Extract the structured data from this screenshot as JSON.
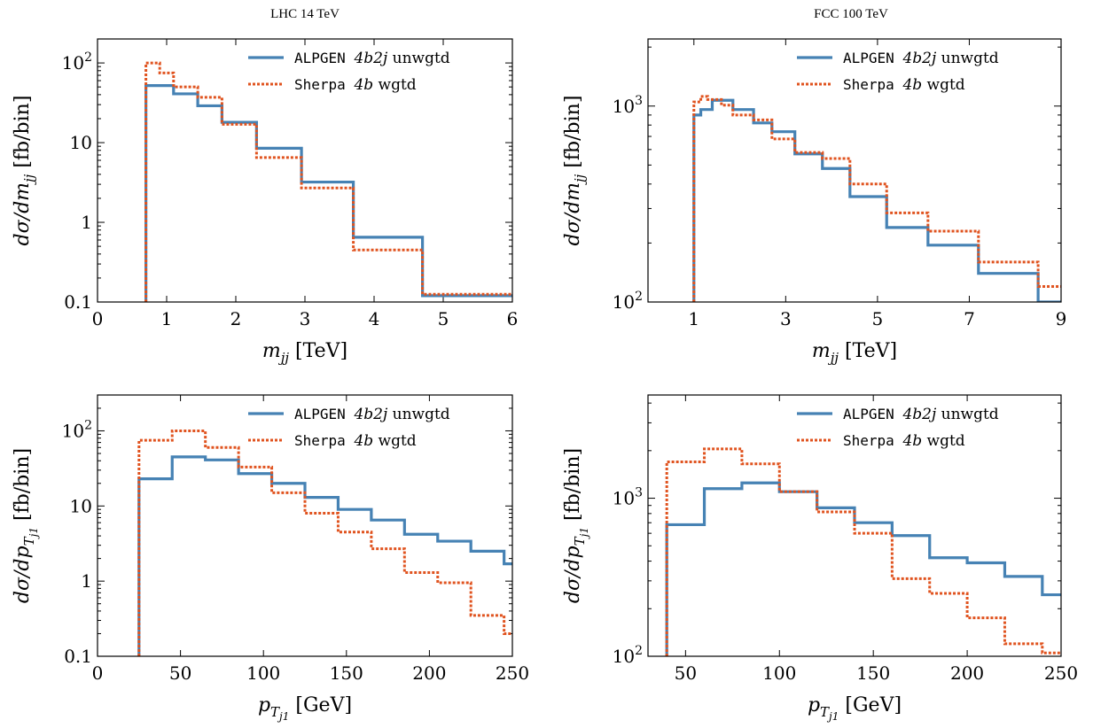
{
  "titles": {
    "left": "LHC 14 TeV",
    "right": "FCC 100 TeV"
  },
  "legend": [
    {
      "name": "ALPGEN 4b2j unwgtd",
      "prog": "ALPGEN",
      "proc": "4b2j",
      "tag": "unwgtd",
      "color": "#4682b4",
      "style": "solid"
    },
    {
      "name": "Sherpa 4b wgtd",
      "prog": "Sherpa",
      "proc": "4b",
      "tag": "wgtd",
      "color": "#e0531f",
      "style": "dotted"
    }
  ],
  "chart_data": [
    {
      "type": "line",
      "title": "LHC 14 TeV",
      "xlabel": "m_jj [TeV]",
      "ylabel": "dσ/dm_jj [fb/bin]",
      "xlim": [
        0,
        6
      ],
      "ylim": [
        0.1,
        200
      ],
      "yscale": "log",
      "xticks": [
        0,
        1,
        2,
        3,
        4,
        5,
        6
      ],
      "yticks": [
        {
          "v": 0.1,
          "label": "0.1"
        },
        {
          "v": 1,
          "label": "1"
        },
        {
          "v": 10,
          "label": "10"
        },
        {
          "v": 100,
          "label": "10^2"
        }
      ],
      "legend_position": "top-right",
      "series": [
        {
          "name": "ALPGEN 4b2j unwgtd",
          "edges": [
            0.7,
            1.1,
            1.45,
            1.8,
            2.3,
            2.95,
            3.7,
            4.7,
            6.0
          ],
          "values": [
            52,
            41,
            29,
            18,
            8.5,
            3.2,
            0.65,
            0.12
          ]
        },
        {
          "name": "Sherpa 4b wgtd",
          "edges": [
            0.7,
            0.9,
            1.1,
            1.45,
            1.8,
            2.3,
            2.95,
            3.7,
            4.7,
            6.0
          ],
          "values": [
            100,
            75,
            50,
            37,
            17,
            6.5,
            2.7,
            0.45,
            0.125
          ]
        }
      ]
    },
    {
      "type": "line",
      "title": "FCC 100 TeV",
      "xlabel": "m_jj [TeV]",
      "ylabel": "dσ/dm_jj [fb/bin]",
      "xlim": [
        0,
        9
      ],
      "ylim": [
        100,
        2200
      ],
      "yscale": "log",
      "xticks": [
        1,
        3,
        5,
        7,
        9
      ],
      "yticks": [
        {
          "v": 100,
          "label": "10^2"
        },
        {
          "v": 1000,
          "label": "10^3"
        }
      ],
      "legend_position": "top-right",
      "series": [
        {
          "name": "ALPGEN 4b2j unwgtd",
          "edges": [
            1.0,
            1.15,
            1.4,
            1.85,
            2.3,
            2.7,
            3.2,
            3.8,
            4.4,
            5.2,
            6.1,
            7.2,
            8.5,
            9.0
          ],
          "values": [
            900,
            960,
            1070,
            960,
            820,
            740,
            570,
            480,
            345,
            240,
            195,
            140,
            100
          ]
        },
        {
          "name": "Sherpa 4b wgtd",
          "edges": [
            1.0,
            1.15,
            1.3,
            1.6,
            1.85,
            2.3,
            2.7,
            3.2,
            3.8,
            4.4,
            5.2,
            6.1,
            7.2,
            8.5,
            9.0
          ],
          "values": [
            1050,
            1120,
            1080,
            1010,
            900,
            850,
            680,
            580,
            540,
            400,
            285,
            230,
            160,
            120
          ]
        }
      ]
    },
    {
      "type": "line",
      "title": "LHC 14 TeV",
      "xlabel": "p_T,j1 [GeV]",
      "ylabel": "dσ/dp_T,j1 [fb/bin]",
      "xlim": [
        0,
        250
      ],
      "ylim": [
        0.1,
        300
      ],
      "yscale": "log",
      "xticks": [
        0,
        50,
        100,
        150,
        200,
        250
      ],
      "yticks": [
        {
          "v": 0.1,
          "label": "0.1"
        },
        {
          "v": 1,
          "label": "1"
        },
        {
          "v": 10,
          "label": "10"
        },
        {
          "v": 100,
          "label": "10^2"
        }
      ],
      "legend_position": "top-right",
      "series": [
        {
          "name": "ALPGEN 4b2j unwgtd",
          "edges": [
            25,
            45,
            65,
            85,
            105,
            125,
            145,
            165,
            185,
            205,
            225,
            245,
            250
          ],
          "values": [
            23,
            45,
            41,
            27,
            20,
            13,
            9,
            6.5,
            4.2,
            3.4,
            2.5,
            1.7
          ]
        },
        {
          "name": "Sherpa 4b wgtd",
          "edges": [
            25,
            45,
            65,
            85,
            105,
            125,
            145,
            165,
            185,
            205,
            225,
            245,
            250
          ],
          "values": [
            75,
            100,
            60,
            33,
            15,
            8,
            4.5,
            2.7,
            1.3,
            0.95,
            0.35,
            0.2
          ]
        }
      ]
    },
    {
      "type": "line",
      "title": "FCC 100 TeV",
      "xlabel": "p_T,j1 [GeV]",
      "ylabel": "dσ/dp_T,j1 [fb/bin]",
      "xlim": [
        30,
        250
      ],
      "ylim": [
        100,
        4500
      ],
      "yscale": "log",
      "xticks": [
        50,
        100,
        150,
        200,
        250
      ],
      "yticks": [
        {
          "v": 100,
          "label": "10^2"
        },
        {
          "v": 1000,
          "label": "10^3"
        }
      ],
      "legend_position": "top-right",
      "series": [
        {
          "name": "ALPGEN 4b2j unwgtd",
          "edges": [
            40,
            60,
            80,
            100,
            120,
            140,
            160,
            180,
            200,
            220,
            240,
            250
          ],
          "values": [
            680,
            1150,
            1250,
            1100,
            870,
            700,
            580,
            420,
            390,
            320,
            245
          ]
        },
        {
          "name": "Sherpa 4b wgtd",
          "edges": [
            40,
            60,
            80,
            100,
            120,
            140,
            160,
            180,
            200,
            220,
            240,
            250
          ],
          "values": [
            1700,
            2050,
            1650,
            1100,
            820,
            600,
            310,
            250,
            175,
            120,
            105
          ]
        }
      ]
    }
  ]
}
